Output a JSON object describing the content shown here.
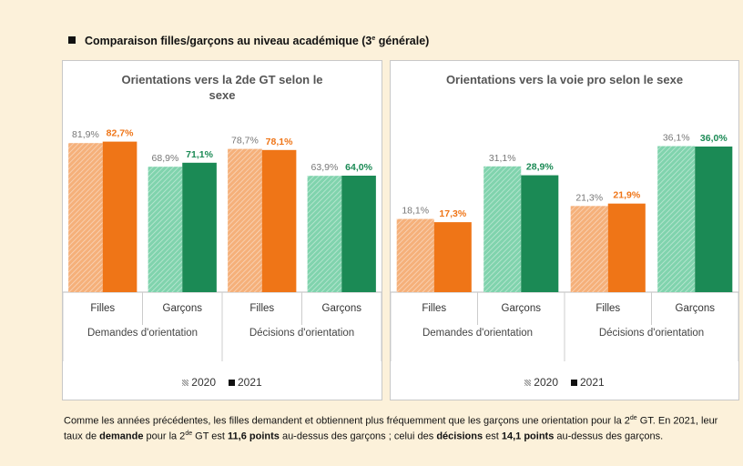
{
  "header": [
    {
      "text": "Comparaison filles/garçons au niveau académique (3",
      "style": "bold"
    },
    {
      "text": "e",
      "style": "sup"
    },
    {
      "text": " générale)",
      "style": "bold"
    }
  ],
  "chart_data": [
    {
      "type": "bar",
      "title": "Orientations vers la 2de GT selon le sexe",
      "categories": [
        "Filles",
        "Garçons",
        "Filles",
        "Garçons"
      ],
      "groups": [
        "Demandes d'orientation",
        "Décisions d'orientation"
      ],
      "ylim": [
        0,
        100
      ],
      "series": [
        {
          "name": "2020",
          "pattern": "hatched",
          "legend_color": "#8c8c8c",
          "colors": [
            "#f5b07a",
            "#80d3ad",
            "#f5b07a",
            "#80d3ad"
          ],
          "values": [
            81.9,
            68.9,
            78.7,
            63.9
          ],
          "value_labels": [
            "81,9%",
            "68,9%",
            "78,7%",
            "63,9%"
          ]
        },
        {
          "name": "2021",
          "pattern": "solid",
          "legend_color": "#111111",
          "colors": [
            "#ef7517",
            "#1b8a55",
            "#ef7517",
            "#1b8a55"
          ],
          "values": [
            82.7,
            71.1,
            78.1,
            64.0
          ],
          "value_labels": [
            "82,7%",
            "71,1%",
            "78,1%",
            "64,0%"
          ]
        }
      ]
    },
    {
      "type": "bar",
      "title": "Orientations vers la voie pro selon le sexe",
      "categories": [
        "Filles",
        "Garçons",
        "Filles",
        "Garçons"
      ],
      "groups": [
        "Demandes d'orientation",
        "Décisions d'orientation"
      ],
      "ylim": [
        0,
        45
      ],
      "series": [
        {
          "name": "2020",
          "pattern": "hatched",
          "legend_color": "#8c8c8c",
          "colors": [
            "#f5b07a",
            "#80d3ad",
            "#f5b07a",
            "#80d3ad"
          ],
          "values": [
            18.1,
            31.1,
            21.3,
            36.1
          ],
          "value_labels": [
            "18,1%",
            "31,1%",
            "21,3%",
            "36,1%"
          ]
        },
        {
          "name": "2021",
          "pattern": "solid",
          "legend_color": "#111111",
          "colors": [
            "#ef7517",
            "#1b8a55",
            "#ef7517",
            "#1b8a55"
          ],
          "values": [
            17.3,
            28.9,
            21.9,
            36.0
          ],
          "value_labels": [
            "17,3%",
            "28,9%",
            "21,9%",
            "36,0%"
          ]
        }
      ]
    }
  ],
  "paragraph": [
    {
      "text": "Comme les années précédentes, les filles demandent et obtiennent plus fréquemment que les garçons une orientation pour la 2",
      "style": "normal"
    },
    {
      "text": "de",
      "style": "sup"
    },
    {
      "text": " GT. En 2021, leur taux de ",
      "style": "normal"
    },
    {
      "text": "demande",
      "style": "bold"
    },
    {
      "text": " pour la 2",
      "style": "normal"
    },
    {
      "text": "de",
      "style": "sup"
    },
    {
      "text": " GT est ",
      "style": "normal"
    },
    {
      "text": "11,6 points",
      "style": "bold"
    },
    {
      "text": " au-dessus des garçons ; celui des ",
      "style": "normal"
    },
    {
      "text": "décisions",
      "style": "bold"
    },
    {
      "text": " est ",
      "style": "normal"
    },
    {
      "text": "14,1 points",
      "style": "bold"
    },
    {
      "text": " au-dessus des garçons.",
      "style": "normal"
    }
  ]
}
